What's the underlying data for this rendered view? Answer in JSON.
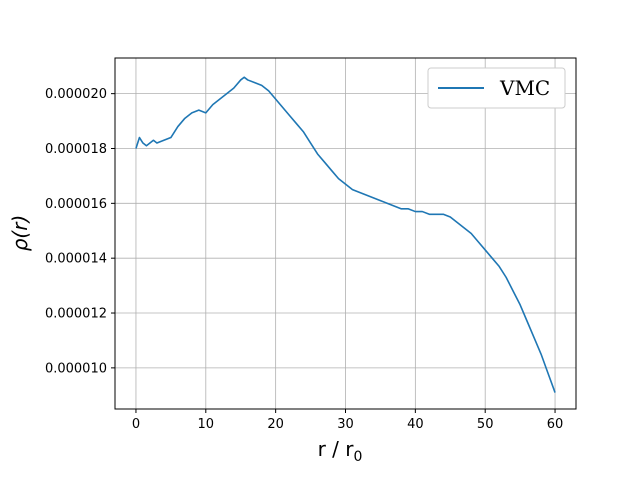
{
  "chart_data": {
    "type": "line",
    "xlabel": "r / r",
    "xlabel_sub": "0",
    "ylabel": "ρ(r)",
    "xlim": [
      -3,
      63
    ],
    "ylim": [
      8.5e-06,
      2.13e-05
    ],
    "xticks": [
      0,
      10,
      20,
      30,
      40,
      50,
      60
    ],
    "xtick_labels": [
      "0",
      "10",
      "20",
      "30",
      "40",
      "50",
      "60"
    ],
    "yticks": [
      1e-05,
      1.2e-05,
      1.4e-05,
      1.6e-05,
      1.8e-05,
      2e-05
    ],
    "ytick_labels": [
      "0.000010",
      "0.000012",
      "0.000014",
      "0.000016",
      "0.000018",
      "0.000020"
    ],
    "grid": true,
    "legend_position": "top-right",
    "series": [
      {
        "name": "VMC",
        "color": "#1f77b4",
        "x": [
          0,
          0.5,
          1,
          1.5,
          2,
          2.5,
          3,
          4,
          5,
          6,
          7,
          8,
          9,
          10,
          11,
          12,
          13,
          14,
          15,
          15.5,
          16,
          17,
          18,
          19,
          20,
          21,
          22,
          23,
          24,
          25,
          26,
          27,
          28,
          29,
          30,
          31,
          32,
          33,
          34,
          35,
          36,
          37,
          38,
          39,
          40,
          41,
          42,
          43,
          44,
          45,
          46,
          47,
          48,
          49,
          50,
          51,
          52,
          53,
          54,
          55,
          56,
          57,
          58,
          59,
          60
        ],
        "y": [
          1.8e-05,
          1.84e-05,
          1.82e-05,
          1.81e-05,
          1.82e-05,
          1.83e-05,
          1.82e-05,
          1.83e-05,
          1.84e-05,
          1.88e-05,
          1.91e-05,
          1.93e-05,
          1.94e-05,
          1.93e-05,
          1.96e-05,
          1.98e-05,
          2e-05,
          2.02e-05,
          2.05e-05,
          2.06e-05,
          2.05e-05,
          2.04e-05,
          2.03e-05,
          2.01e-05,
          1.98e-05,
          1.95e-05,
          1.92e-05,
          1.89e-05,
          1.86e-05,
          1.82e-05,
          1.78e-05,
          1.75e-05,
          1.72e-05,
          1.69e-05,
          1.67e-05,
          1.65e-05,
          1.64e-05,
          1.63e-05,
          1.62e-05,
          1.61e-05,
          1.6e-05,
          1.59e-05,
          1.58e-05,
          1.58e-05,
          1.57e-05,
          1.57e-05,
          1.56e-05,
          1.56e-05,
          1.56e-05,
          1.55e-05,
          1.53e-05,
          1.51e-05,
          1.49e-05,
          1.46e-05,
          1.43e-05,
          1.4e-05,
          1.37e-05,
          1.33e-05,
          1.28e-05,
          1.23e-05,
          1.17e-05,
          1.11e-05,
          1.05e-05,
          9.8e-06,
          9.1e-06
        ]
      }
    ]
  }
}
